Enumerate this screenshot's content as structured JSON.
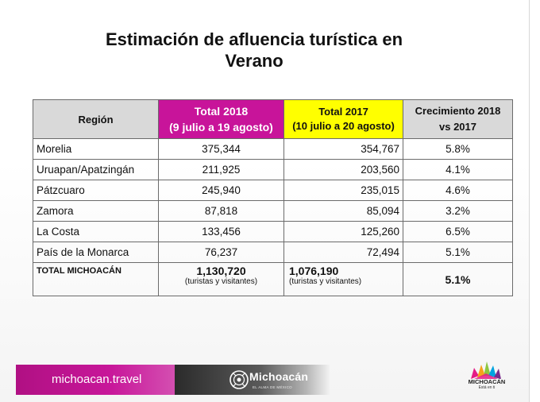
{
  "title_line1": "Estimación de afluencia turística en",
  "title_line2": "Verano",
  "table": {
    "headers": {
      "region": "Región",
      "total_2018": "Total 2018",
      "total_2018_range": "(9 julio a 19 agosto)",
      "total_2017": "Total 2017",
      "total_2017_range": "(10 julio  a 20 agosto)",
      "growth_line1": "Crecimiento 2018",
      "growth_line2": "vs 2017"
    },
    "rows": [
      {
        "region": "Morelia",
        "t2018": "375,344",
        "t2017": "354,767",
        "growth": "5.8%"
      },
      {
        "region": "Uruapan/Apatzingán",
        "t2018": "211,925",
        "t2017": "203,560",
        "growth": "4.1%"
      },
      {
        "region": "Pátzcuaro",
        "t2018": "245,940",
        "t2017": "235,015",
        "growth": "4.6%"
      },
      {
        "region": "Zamora",
        "t2018": "87,818",
        "t2017": "85,094",
        "growth": "3.2%"
      },
      {
        "region": "La Costa",
        "t2018": "133,456",
        "t2017": "125,260",
        "growth": "6.5%"
      },
      {
        "region": "País de la Monarca",
        "t2018": "76,237",
        "t2017": "72,494",
        "growth": "5.1%"
      }
    ],
    "total": {
      "label": "TOTAL MICHOACÁN",
      "t2018": "1,130,720",
      "t2018_note": "(turistas y visitantes)",
      "t2017": "1,076,190",
      "t2017_note": "(turistas y visitantes)",
      "growth": "5.1%"
    }
  },
  "footer": {
    "site": "michoacan.travel",
    "brand": "Michoacán",
    "brand_tagline": "EL ALMA DE MÉXICO",
    "logo_name": "MICHOACÁN",
    "logo_tagline": "Está en ti",
    "colors": {
      "magenta": "#c8149a",
      "yellow": "#ffff00"
    }
  }
}
